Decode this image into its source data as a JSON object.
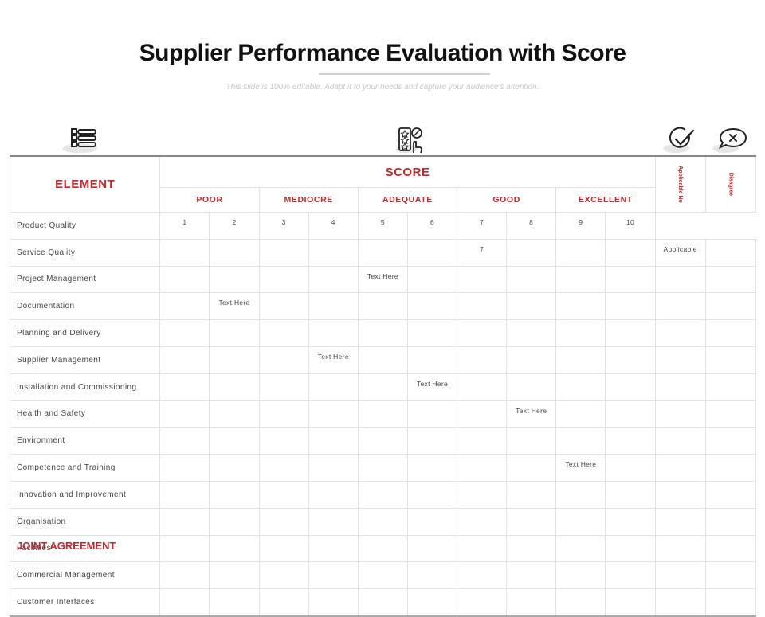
{
  "title": "Supplier Performance Evaluation with Score",
  "subtitle": "This slide is 100% editable. Adapt it to your needs and capture your audience's attention.",
  "icons": {
    "left": "list-icon",
    "center": "rating-checklist-icon",
    "right1": "checkmark-icon",
    "right2": "close-chat-icon"
  },
  "accent_color": "#c0282d",
  "header": {
    "element": "ELEMENT",
    "score": "SCORE",
    "levels": [
      "POOR",
      "MEDIOCRE",
      "ADEQUATE",
      "GOOD",
      "EXCELLENT"
    ],
    "applicable_no": "Applicable No",
    "disagree": "Disagree"
  },
  "rows": [
    {
      "label": "Product Quality",
      "cells": [
        "1",
        "2",
        "3",
        "4",
        "5",
        "6",
        "7",
        "8",
        "9",
        "10",
        "",
        ""
      ]
    },
    {
      "label": "Service Quality",
      "cells": [
        "",
        "",
        "",
        "",
        "",
        "",
        "7",
        "",
        "",
        "",
        "Applicable",
        ""
      ]
    },
    {
      "label": "Project Management",
      "cells": [
        "",
        "",
        "",
        "",
        "Text Here",
        "",
        "",
        "",
        "",
        "",
        "",
        ""
      ]
    },
    {
      "label": "Documentation",
      "cells": [
        "",
        "Text Here",
        "",
        "",
        "",
        "",
        "",
        "",
        "",
        "",
        "",
        ""
      ]
    },
    {
      "label": "Planning and Delivery",
      "cells": [
        "",
        "",
        "",
        "",
        "",
        "",
        "",
        "",
        "",
        "",
        "",
        ""
      ]
    },
    {
      "label": "Supplier Management",
      "cells": [
        "",
        "",
        "",
        "Text Here",
        "",
        "",
        "",
        "",
        "",
        "",
        "",
        ""
      ]
    },
    {
      "label": "Installation and Commissioning",
      "cells": [
        "",
        "",
        "",
        "",
        "",
        "Text Here",
        "",
        "",
        "",
        "",
        "",
        ""
      ]
    },
    {
      "label": "Health and Safety",
      "cells": [
        "",
        "",
        "",
        "",
        "",
        "",
        "",
        "Text Here",
        "",
        "",
        "",
        ""
      ]
    },
    {
      "label": "Environment",
      "cells": [
        "",
        "",
        "",
        "",
        "",
        "",
        "",
        "",
        "",
        "",
        "",
        ""
      ]
    },
    {
      "label": "Competence and Training",
      "cells": [
        "",
        "",
        "",
        "",
        "",
        "",
        "",
        "",
        "Text Here",
        "",
        "",
        ""
      ]
    },
    {
      "label": "Innovation and Improvement",
      "cells": [
        "",
        "",
        "",
        "",
        "",
        "",
        "",
        "",
        "",
        "",
        "",
        ""
      ]
    },
    {
      "label": "Organisation",
      "cells": [
        "",
        "",
        "",
        "",
        "",
        "",
        "",
        "",
        "",
        "",
        "",
        ""
      ]
    },
    {
      "label": "Facilities",
      "cells": [
        "",
        "",
        "",
        "",
        "",
        "",
        "",
        "",
        "",
        "",
        "",
        ""
      ]
    },
    {
      "label": "Commercial Management",
      "cells": [
        "",
        "",
        "",
        "",
        "",
        "",
        "",
        "",
        "",
        "",
        "",
        ""
      ]
    },
    {
      "label": "Customer Interfaces",
      "cells": [
        "",
        "",
        "",
        "",
        "",
        "",
        "",
        "",
        "",
        "",
        "",
        ""
      ]
    }
  ],
  "footer": "JOINT AGREEMENT"
}
